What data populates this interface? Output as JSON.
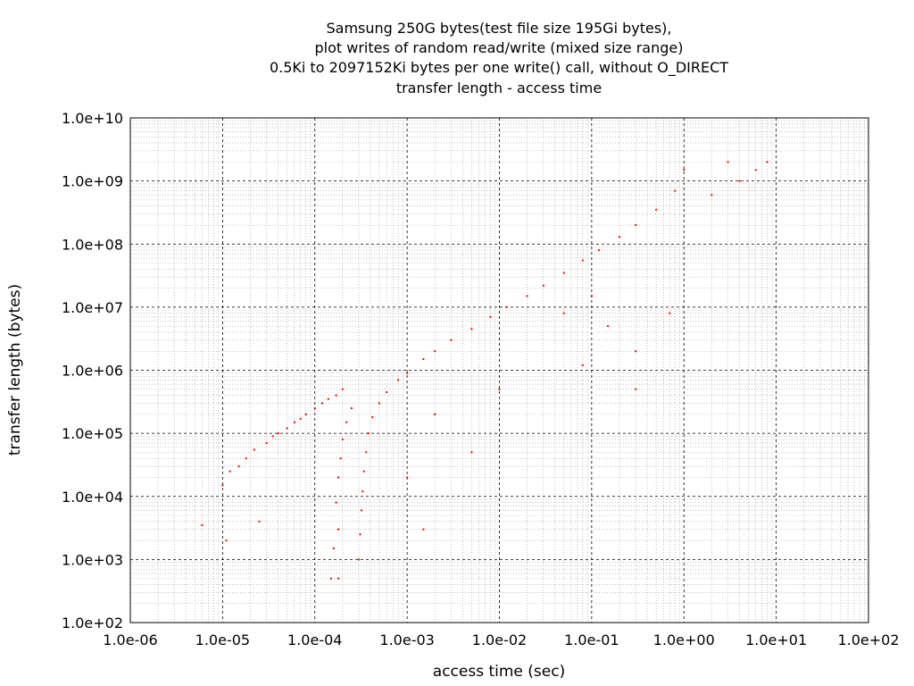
{
  "chart_data": {
    "type": "scatter",
    "title": [
      "Samsung 250G bytes(test file size 195Gi bytes),",
      "plot writes of random read/write (mixed size range)",
      "0.5Ki to 2097152Ki bytes per one write() call, without O_DIRECT",
      "transfer length - access time"
    ],
    "xlabel": "access time (sec)",
    "ylabel": "transfer length (bytes)",
    "x_scale": "log",
    "y_scale": "log",
    "xlim": [
      1e-06,
      100
    ],
    "ylim": [
      100,
      10000000000
    ],
    "x_ticks": [
      "1.0e-06",
      "1.0e-05",
      "1.0e-04",
      "1.0e-03",
      "1.0e-02",
      "1.0e-01",
      "1.0e+00",
      "1.0e+01",
      "1.0e+02"
    ],
    "y_ticks": [
      "1.0e+02",
      "1.0e+03",
      "1.0e+04",
      "1.0e+05",
      "1.0e+06",
      "1.0e+07",
      "1.0e+08",
      "1.0e+09",
      "1.0e+10"
    ],
    "grid": true,
    "minor_grid": true,
    "legend": "none",
    "point_color": "#ff0000",
    "series": [
      {
        "values_description_free": true,
        "points": [
          [
            6e-06,
            3500
          ],
          [
            1.1e-05,
            2000
          ],
          [
            1e-05,
            15000
          ],
          [
            1.2e-05,
            25000
          ],
          [
            1.5e-05,
            30000
          ],
          [
            1.8e-05,
            40000
          ],
          [
            2.2e-05,
            55000
          ],
          [
            2.5e-05,
            4000
          ],
          [
            3e-05,
            70000
          ],
          [
            3.5e-05,
            90000
          ],
          [
            4e-05,
            100000
          ],
          [
            5e-05,
            120000
          ],
          [
            6e-05,
            150000
          ],
          [
            7e-05,
            170000
          ],
          [
            8e-05,
            200000
          ],
          [
            0.0001,
            250000
          ],
          [
            0.00012,
            300000
          ],
          [
            0.00014,
            350000
          ],
          [
            0.00017,
            400000
          ],
          [
            0.0002,
            500000
          ],
          [
            0.00015,
            500
          ],
          [
            0.00018,
            500
          ],
          [
            0.00016,
            1500
          ],
          [
            0.00018,
            3000
          ],
          [
            0.00017,
            8000
          ],
          [
            0.00018,
            20000
          ],
          [
            0.00019,
            40000
          ],
          [
            0.0002,
            80000
          ],
          [
            0.00022,
            150000
          ],
          [
            0.00025,
            250000
          ],
          [
            0.0003,
            1000
          ],
          [
            0.00031,
            2500
          ],
          [
            0.00032,
            6000
          ],
          [
            0.00033,
            12000
          ],
          [
            0.00034,
            25000
          ],
          [
            0.00036,
            50000
          ],
          [
            0.00038,
            100000
          ],
          [
            0.00042,
            180000
          ],
          [
            0.0005,
            300000
          ],
          [
            0.0006,
            450000
          ],
          [
            0.0008,
            700000
          ],
          [
            0.001,
            900000
          ],
          [
            0.0015,
            1500000
          ],
          [
            0.002,
            2000000
          ],
          [
            0.003,
            3000000
          ],
          [
            0.005,
            4500000
          ],
          [
            0.008,
            7000000
          ],
          [
            0.012,
            10000000
          ],
          [
            0.02,
            15000000
          ],
          [
            0.03,
            22000000
          ],
          [
            0.05,
            35000000
          ],
          [
            0.08,
            55000000
          ],
          [
            0.12,
            80000000
          ],
          [
            0.2,
            130000000
          ],
          [
            0.3,
            200000000
          ],
          [
            0.5,
            350000000
          ],
          [
            0.8,
            700000000
          ],
          [
            1.0,
            1500000000
          ],
          [
            3.0,
            2000000000
          ],
          [
            8.0,
            2000000000
          ],
          [
            2.0,
            600000000
          ],
          [
            4.0,
            1000000000
          ],
          [
            6.0,
            1500000000
          ],
          [
            0.001,
            20000
          ],
          [
            0.0015,
            3000
          ],
          [
            0.002,
            200000
          ],
          [
            0.005,
            50000
          ],
          [
            0.01,
            500000
          ],
          [
            0.08,
            1200000
          ],
          [
            0.3,
            2000000
          ],
          [
            0.7,
            8000000
          ],
          [
            0.3,
            500000
          ],
          [
            0.05,
            8000000
          ],
          [
            0.1,
            15000000
          ],
          [
            0.15,
            5000000
          ]
        ]
      }
    ]
  }
}
